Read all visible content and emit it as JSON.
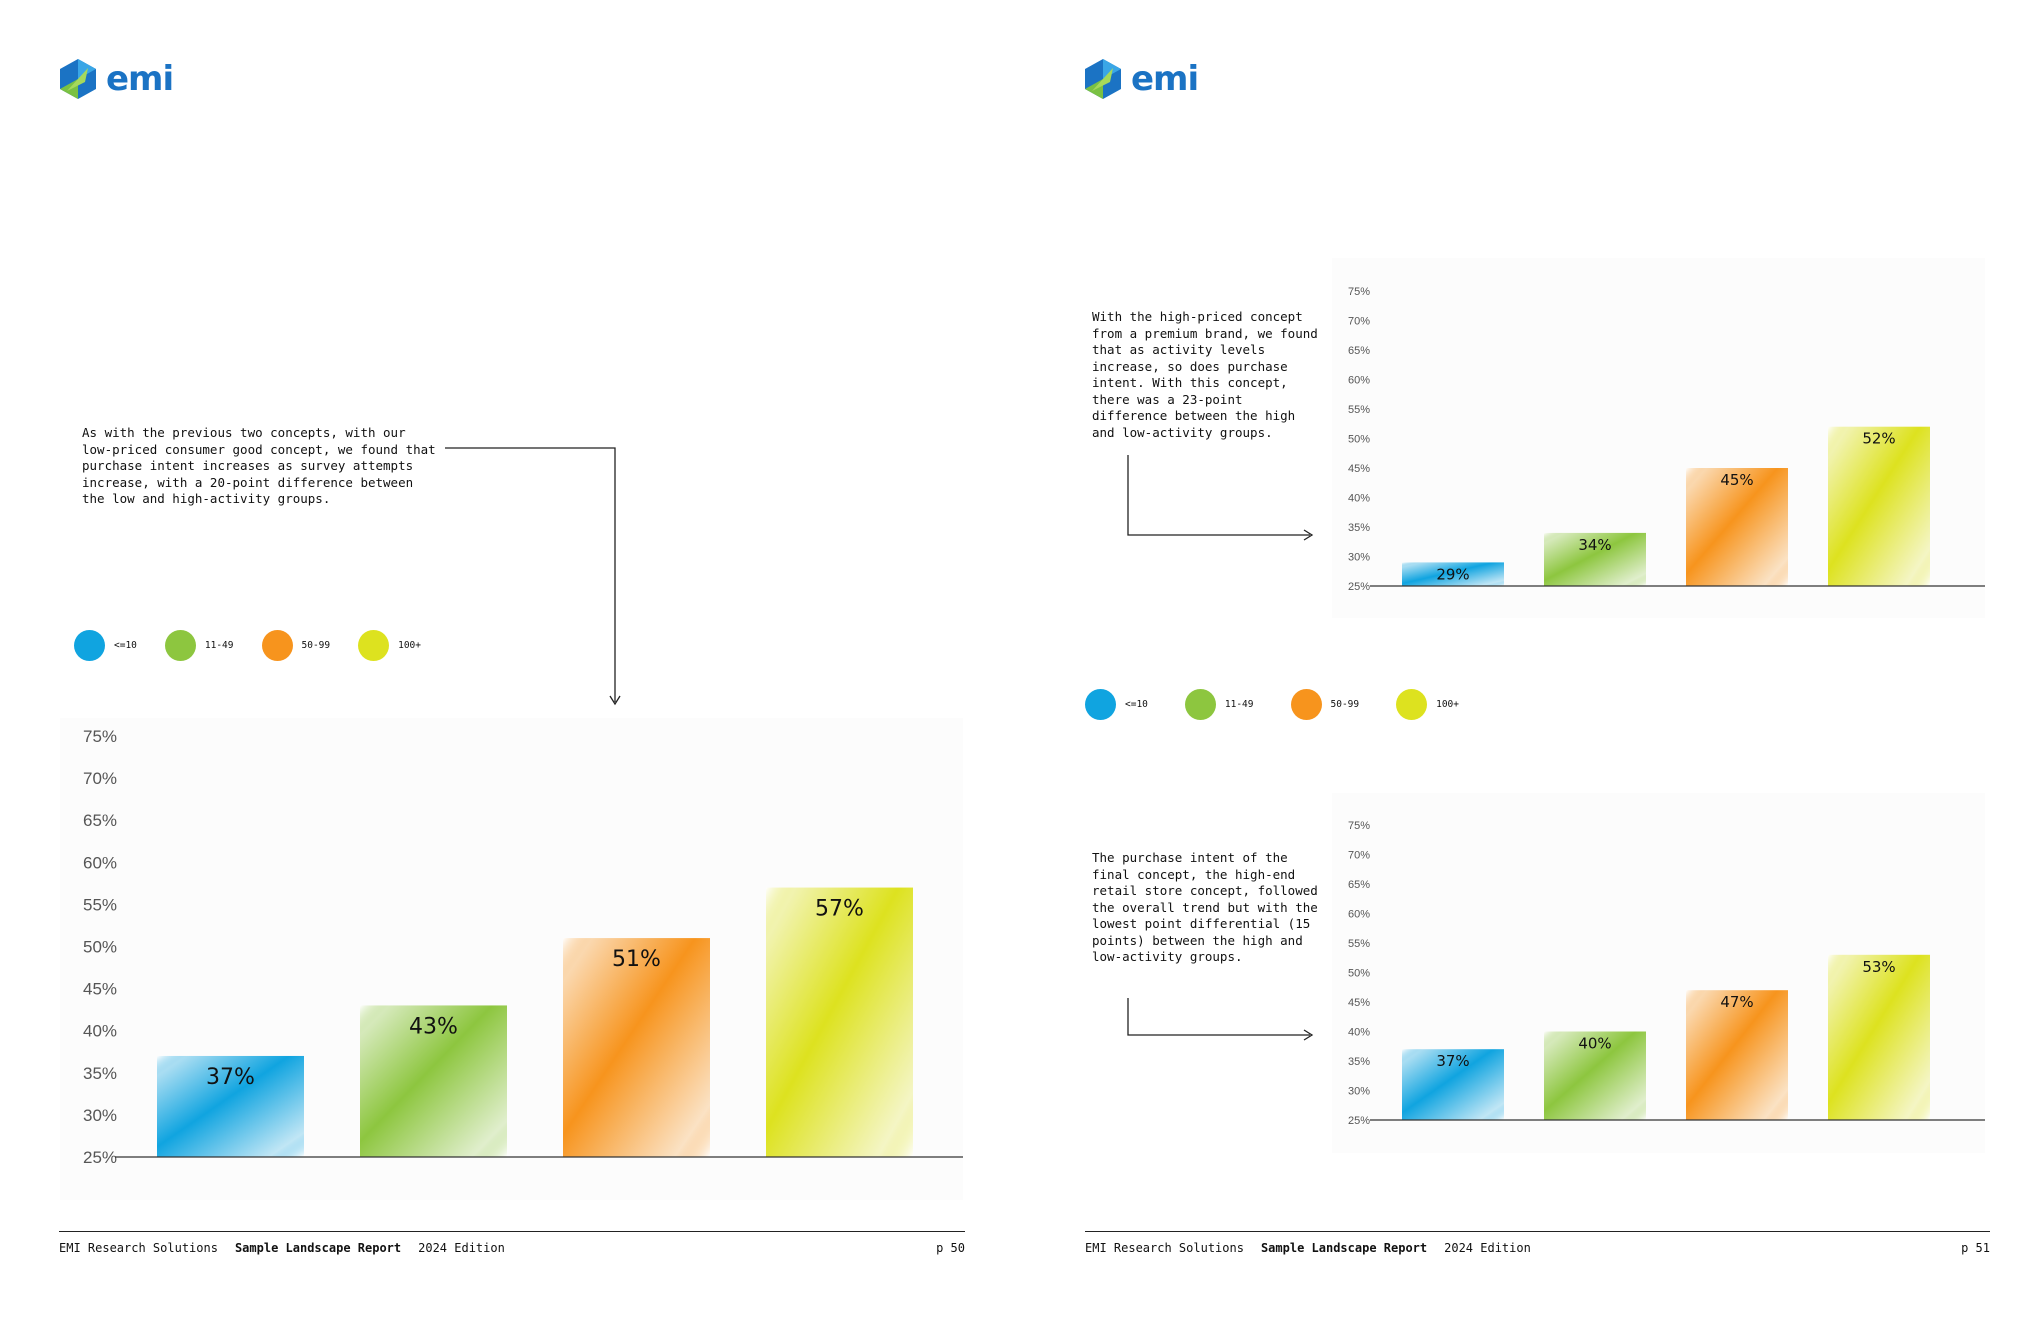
{
  "brand": {
    "name": "emi",
    "colors": {
      "blue": "#1b73c4",
      "green": "#7ac143"
    }
  },
  "legend": {
    "items": [
      {
        "label": "<=10",
        "color": "#10a4e0"
      },
      {
        "label": "11-49",
        "color": "#8dc63f"
      },
      {
        "label": "50-99",
        "color": "#f7941d"
      },
      {
        "label": "100+",
        "color": "#dde21f"
      }
    ]
  },
  "pages": {
    "left": {
      "callout": "As with the previous two concepts, with our low-priced consumer good concept, we found that purchase intent increases as survey attempts increase, with a 20-point difference between the low and high-activity groups.",
      "footer": {
        "org": "EMI Research Solutions",
        "title": "Sample Landscape Report",
        "edition": "2024 Edition",
        "page": "p 50"
      }
    },
    "right": {
      "callout_top": "With the high-priced concept from a premium brand, we found that as activity levels increase, so does purchase intent. With this concept, there was a 23-point difference between the high and low-activity groups.",
      "callout_bottom": "The purchase intent of the final concept, the high-end retail store concept, followed the overall trend but with the lowest point differential (15 points) between the high and low-activity groups.",
      "footer": {
        "org": "EMI Research Solutions",
        "title": "Sample Landscape Report",
        "edition": "2024 Edition",
        "page": "p 51"
      }
    }
  },
  "chart_data": [
    {
      "id": "left",
      "type": "bar",
      "categories": [
        "<=10",
        "11-49",
        "50-99",
        "100+"
      ],
      "values": [
        37,
        43,
        51,
        57
      ],
      "data_labels": [
        "37%",
        "43%",
        "51%",
        "57%"
      ],
      "ylim": [
        25,
        75
      ],
      "yticks": [
        25,
        30,
        35,
        40,
        45,
        50,
        55,
        60,
        65,
        70,
        75
      ],
      "ytick_labels": [
        "25%",
        "30%",
        "35%",
        "40%",
        "45%",
        "50%",
        "55%",
        "60%",
        "65%",
        "70%",
        "75%"
      ],
      "grid": false
    },
    {
      "id": "right-top",
      "type": "bar",
      "categories": [
        "<=10",
        "11-49",
        "50-99",
        "100+"
      ],
      "values": [
        29,
        34,
        45,
        52
      ],
      "data_labels": [
        "29%",
        "34%",
        "45%",
        "52%"
      ],
      "ylim": [
        25,
        75
      ],
      "yticks": [
        25,
        30,
        35,
        40,
        45,
        50,
        55,
        60,
        65,
        70,
        75
      ],
      "ytick_labels": [
        "25%",
        "30%",
        "35%",
        "40%",
        "45%",
        "50%",
        "55%",
        "60%",
        "65%",
        "70%",
        "75%"
      ],
      "grid": false
    },
    {
      "id": "right-bottom",
      "type": "bar",
      "categories": [
        "<=10",
        "11-49",
        "50-99",
        "100+"
      ],
      "values": [
        37,
        40,
        47,
        53
      ],
      "data_labels": [
        "37%",
        "40%",
        "47%",
        "53%"
      ],
      "ylim": [
        25,
        75
      ],
      "yticks": [
        25,
        30,
        35,
        40,
        45,
        50,
        55,
        60,
        65,
        70,
        75
      ],
      "ytick_labels": [
        "25%",
        "30%",
        "35%",
        "40%",
        "45%",
        "50%",
        "55%",
        "60%",
        "65%",
        "70%",
        "75%"
      ],
      "grid": false
    }
  ]
}
